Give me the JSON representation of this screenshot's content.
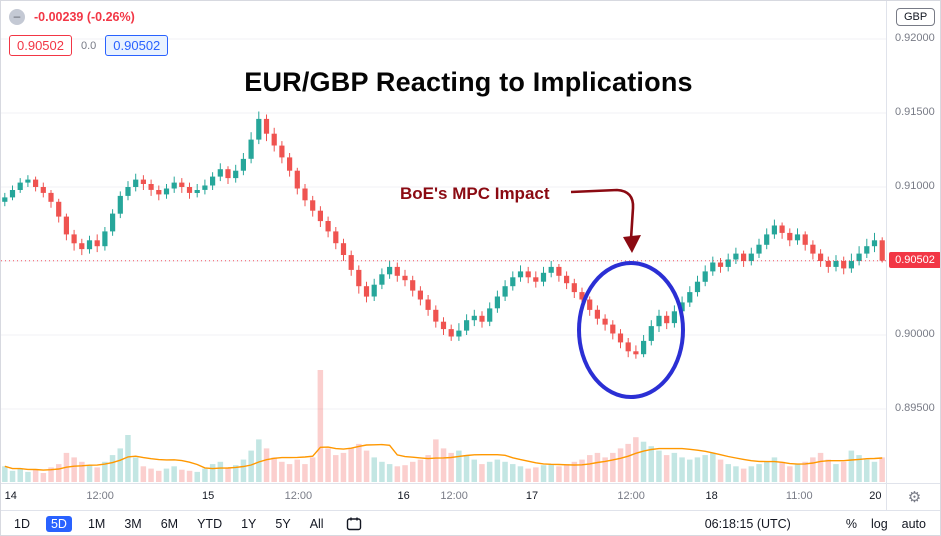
{
  "legend": {
    "change": "-0.00239 (-0.26%)",
    "sell": "0.90502",
    "spread": "0.0",
    "buy": "0.90502"
  },
  "overlay": {
    "title": "EUR/GBP Reacting to Implications",
    "annotation": "BoE's MPC Impact"
  },
  "price_axis": {
    "currency": "GBP",
    "ticks": [
      {
        "label": "0.92000",
        "price": 0.92
      },
      {
        "label": "0.91500",
        "price": 0.915
      },
      {
        "label": "0.91000",
        "price": 0.91
      },
      {
        "label": "0.90000",
        "price": 0.9
      },
      {
        "label": "0.89500",
        "price": 0.895
      }
    ],
    "last_price": "0.90502"
  },
  "time_axis": {
    "labels": [
      {
        "t": "14",
        "f": 0.011,
        "major": true
      },
      {
        "t": "12:00",
        "f": 0.112,
        "major": false
      },
      {
        "t": "15",
        "f": 0.234,
        "major": true
      },
      {
        "t": "12:00",
        "f": 0.336,
        "major": false
      },
      {
        "t": "16",
        "f": 0.455,
        "major": true
      },
      {
        "t": "12:00",
        "f": 0.512,
        "major": false
      },
      {
        "t": "17",
        "f": 0.6,
        "major": true
      },
      {
        "t": "12:00",
        "f": 0.712,
        "major": false
      },
      {
        "t": "18",
        "f": 0.803,
        "major": true
      },
      {
        "t": "11:00",
        "f": 0.902,
        "major": false
      },
      {
        "t": "20",
        "f": 0.988,
        "major": true
      }
    ]
  },
  "toolbar": {
    "ranges": [
      "1D",
      "5D",
      "1M",
      "3M",
      "6M",
      "YTD",
      "1Y",
      "5Y",
      "All"
    ],
    "selected_range": "5D",
    "clock": "06:18:15 (UTC)",
    "scale_buttons": [
      "%",
      "log",
      "auto"
    ]
  },
  "icons": {
    "series_minus": "–",
    "settings_gear": "⚙"
  },
  "colors": {
    "up": "#26a69a",
    "down": "#ef5350",
    "volume_ma": "#ff9800",
    "accent": "#2962ff",
    "last_price_bg": "#f23645",
    "negative": "#f23645",
    "annotation": "#8b0a12",
    "ellipse": "#2b2fd4"
  },
  "chart_data": {
    "type": "candlestick",
    "symbol": "EUR/GBP",
    "title": "EUR/GBP Reacting to Implications",
    "quote_currency": "GBP",
    "last_price": 0.90502,
    "change": -0.00239,
    "change_pct": -0.26,
    "y_ticks": [
      0.895,
      0.9,
      0.905,
      0.91,
      0.915,
      0.92
    ],
    "y_range_visible": [
      0.8925,
      0.9226
    ],
    "x_labels": [
      "14",
      "12:00",
      "15",
      "12:00",
      "16",
      "12:00",
      "17",
      "12:00",
      "18",
      "11:00",
      "20"
    ],
    "annotations": {
      "callout": "BoE's MPC Impact",
      "ellipse_highlight": "dip to ~0.8985 around 12:00 between 17 and 18"
    },
    "candles": [
      [
        0.909,
        0.9096,
        0.9087,
        0.9093
      ],
      [
        0.9093,
        0.9101,
        0.9091,
        0.9098
      ],
      [
        0.9098,
        0.9106,
        0.9096,
        0.9103
      ],
      [
        0.9103,
        0.9108,
        0.91,
        0.9105
      ],
      [
        0.9105,
        0.9107,
        0.9097,
        0.91
      ],
      [
        0.91,
        0.9103,
        0.9093,
        0.9096
      ],
      [
        0.9096,
        0.9098,
        0.9086,
        0.909
      ],
      [
        0.909,
        0.9092,
        0.9076,
        0.908
      ],
      [
        0.908,
        0.9082,
        0.9064,
        0.9068
      ],
      [
        0.9068,
        0.9071,
        0.9057,
        0.9062
      ],
      [
        0.9062,
        0.9065,
        0.9054,
        0.9058
      ],
      [
        0.9058,
        0.9067,
        0.9055,
        0.9064
      ],
      [
        0.9064,
        0.9068,
        0.9056,
        0.906
      ],
      [
        0.906,
        0.9073,
        0.9057,
        0.907
      ],
      [
        0.907,
        0.9085,
        0.9067,
        0.9082
      ],
      [
        0.9082,
        0.9097,
        0.9079,
        0.9094
      ],
      [
        0.9094,
        0.9104,
        0.9091,
        0.91
      ],
      [
        0.91,
        0.9109,
        0.9097,
        0.9105
      ],
      [
        0.9105,
        0.9108,
        0.9098,
        0.9102
      ],
      [
        0.9102,
        0.9105,
        0.9094,
        0.9098
      ],
      [
        0.9098,
        0.9101,
        0.9091,
        0.9095
      ],
      [
        0.9095,
        0.9102,
        0.9092,
        0.9099
      ],
      [
        0.9099,
        0.9107,
        0.9096,
        0.9103
      ],
      [
        0.9103,
        0.9106,
        0.9096,
        0.91
      ],
      [
        0.91,
        0.9103,
        0.9092,
        0.9096
      ],
      [
        0.9096,
        0.9102,
        0.9093,
        0.9098
      ],
      [
        0.9098,
        0.9105,
        0.9095,
        0.9101
      ],
      [
        0.9101,
        0.911,
        0.9098,
        0.9107
      ],
      [
        0.9107,
        0.9116,
        0.9104,
        0.9112
      ],
      [
        0.9112,
        0.9114,
        0.9102,
        0.9106
      ],
      [
        0.9106,
        0.9115,
        0.9103,
        0.9111
      ],
      [
        0.9111,
        0.9123,
        0.9108,
        0.9119
      ],
      [
        0.9119,
        0.9137,
        0.9116,
        0.9132
      ],
      [
        0.9132,
        0.9151,
        0.9129,
        0.9146
      ],
      [
        0.9146,
        0.9149,
        0.9131,
        0.9136
      ],
      [
        0.9136,
        0.914,
        0.9124,
        0.9128
      ],
      [
        0.9128,
        0.9131,
        0.9116,
        0.912
      ],
      [
        0.912,
        0.9123,
        0.9107,
        0.9111
      ],
      [
        0.9111,
        0.9113,
        0.9095,
        0.9099
      ],
      [
        0.9099,
        0.9102,
        0.9087,
        0.9091
      ],
      [
        0.9091,
        0.9094,
        0.908,
        0.9084
      ],
      [
        0.9084,
        0.9087,
        0.9073,
        0.9077
      ],
      [
        0.9077,
        0.908,
        0.9066,
        0.907
      ],
      [
        0.907,
        0.9073,
        0.9058,
        0.9062
      ],
      [
        0.9062,
        0.9065,
        0.905,
        0.9054
      ],
      [
        0.9054,
        0.9057,
        0.904,
        0.9044
      ],
      [
        0.9044,
        0.9047,
        0.9028,
        0.9033
      ],
      [
        0.9033,
        0.9036,
        0.9022,
        0.9026
      ],
      [
        0.9026,
        0.9038,
        0.9023,
        0.9034
      ],
      [
        0.9034,
        0.9045,
        0.9031,
        0.9041
      ],
      [
        0.9041,
        0.905,
        0.9038,
        0.9046
      ],
      [
        0.9046,
        0.9049,
        0.9036,
        0.904
      ],
      [
        0.904,
        0.9044,
        0.9033,
        0.9037
      ],
      [
        0.9037,
        0.904,
        0.9026,
        0.903
      ],
      [
        0.903,
        0.9033,
        0.902,
        0.9024
      ],
      [
        0.9024,
        0.9027,
        0.9013,
        0.9017
      ],
      [
        0.9017,
        0.902,
        0.9005,
        0.9009
      ],
      [
        0.9009,
        0.9012,
        0.9,
        0.9004
      ],
      [
        0.9004,
        0.9007,
        0.8996,
        0.8999
      ],
      [
        0.8999,
        0.9008,
        0.8996,
        0.9003
      ],
      [
        0.9003,
        0.9014,
        0.9,
        0.901
      ],
      [
        0.901,
        0.9017,
        0.9006,
        0.9013
      ],
      [
        0.9013,
        0.9016,
        0.9005,
        0.9009
      ],
      [
        0.9009,
        0.9022,
        0.9006,
        0.9018
      ],
      [
        0.9018,
        0.903,
        0.9015,
        0.9026
      ],
      [
        0.9026,
        0.9037,
        0.9023,
        0.9033
      ],
      [
        0.9033,
        0.9043,
        0.903,
        0.9039
      ],
      [
        0.9039,
        0.9047,
        0.9036,
        0.9043
      ],
      [
        0.9043,
        0.9046,
        0.9035,
        0.9039
      ],
      [
        0.9039,
        0.9043,
        0.9032,
        0.9036
      ],
      [
        0.9036,
        0.9046,
        0.9033,
        0.9042
      ],
      [
        0.9042,
        0.905,
        0.9039,
        0.9046
      ],
      [
        0.9046,
        0.9048,
        0.9036,
        0.904
      ],
      [
        0.904,
        0.9043,
        0.9031,
        0.9035
      ],
      [
        0.9035,
        0.9038,
        0.9025,
        0.9029
      ],
      [
        0.9029,
        0.9032,
        0.902,
        0.9024
      ],
      [
        0.9024,
        0.9026,
        0.9013,
        0.9017
      ],
      [
        0.9017,
        0.902,
        0.9007,
        0.9011
      ],
      [
        0.9011,
        0.9014,
        0.9003,
        0.9007
      ],
      [
        0.9007,
        0.901,
        0.8997,
        0.9001
      ],
      [
        0.9001,
        0.9004,
        0.8991,
        0.8995
      ],
      [
        0.8995,
        0.8998,
        0.8985,
        0.8989
      ],
      [
        0.8989,
        0.8993,
        0.8984,
        0.8987
      ],
      [
        0.8987,
        0.9,
        0.8985,
        0.8996
      ],
      [
        0.8996,
        0.901,
        0.8993,
        0.9006
      ],
      [
        0.9006,
        0.9017,
        0.9002,
        0.9013
      ],
      [
        0.9013,
        0.9016,
        0.9004,
        0.9008
      ],
      [
        0.9008,
        0.902,
        0.9005,
        0.9016
      ],
      [
        0.9016,
        0.9026,
        0.9012,
        0.9022
      ],
      [
        0.9022,
        0.9033,
        0.9019,
        0.9029
      ],
      [
        0.9029,
        0.904,
        0.9026,
        0.9036
      ],
      [
        0.9036,
        0.9047,
        0.9033,
        0.9043
      ],
      [
        0.9043,
        0.9053,
        0.904,
        0.9049
      ],
      [
        0.9049,
        0.9052,
        0.9042,
        0.9046
      ],
      [
        0.9046,
        0.9055,
        0.9043,
        0.9051
      ],
      [
        0.9051,
        0.9059,
        0.9048,
        0.9055
      ],
      [
        0.9055,
        0.9057,
        0.9046,
        0.905
      ],
      [
        0.905,
        0.9059,
        0.9047,
        0.9055
      ],
      [
        0.9055,
        0.9065,
        0.9052,
        0.9061
      ],
      [
        0.9061,
        0.9072,
        0.9058,
        0.9068
      ],
      [
        0.9068,
        0.9078,
        0.9065,
        0.9074
      ],
      [
        0.9074,
        0.9076,
        0.9065,
        0.9069
      ],
      [
        0.9069,
        0.9072,
        0.906,
        0.9064
      ],
      [
        0.9064,
        0.9072,
        0.9061,
        0.9068
      ],
      [
        0.9068,
        0.907,
        0.9057,
        0.9061
      ],
      [
        0.9061,
        0.9064,
        0.9051,
        0.9055
      ],
      [
        0.9055,
        0.9058,
        0.9046,
        0.905
      ],
      [
        0.905,
        0.9053,
        0.9042,
        0.9046
      ],
      [
        0.9046,
        0.9054,
        0.9043,
        0.905
      ],
      [
        0.905,
        0.9053,
        0.9041,
        0.9045
      ],
      [
        0.9045,
        0.9055,
        0.9042,
        0.905
      ],
      [
        0.905,
        0.906,
        0.9047,
        0.9055
      ],
      [
        0.9055,
        0.9065,
        0.9052,
        0.906
      ],
      [
        0.906,
        0.9069,
        0.9056,
        0.9064
      ],
      [
        0.9064,
        0.9066,
        0.9049,
        0.90502
      ]
    ],
    "volume": [
      14,
      10,
      12,
      9,
      11,
      8,
      13,
      16,
      26,
      22,
      18,
      15,
      13,
      18,
      24,
      30,
      42,
      22,
      14,
      12,
      10,
      12,
      14,
      11,
      10,
      9,
      12,
      16,
      18,
      13,
      15,
      20,
      28,
      38,
      30,
      22,
      18,
      16,
      20,
      16,
      22,
      100,
      30,
      24,
      26,
      30,
      34,
      28,
      22,
      18,
      16,
      14,
      15,
      18,
      20,
      24,
      38,
      30,
      26,
      28,
      24,
      20,
      16,
      18,
      20,
      18,
      16,
      14,
      12,
      13,
      15,
      16,
      14,
      16,
      18,
      20,
      24,
      26,
      22,
      26,
      30,
      34,
      40,
      36,
      32,
      28,
      24,
      26,
      22,
      20,
      22,
      24,
      26,
      20,
      16,
      14,
      12,
      14,
      16,
      18,
      22,
      18,
      14,
      16,
      18,
      22,
      26,
      20,
      16,
      18,
      28,
      24,
      20,
      18,
      22
    ]
  }
}
